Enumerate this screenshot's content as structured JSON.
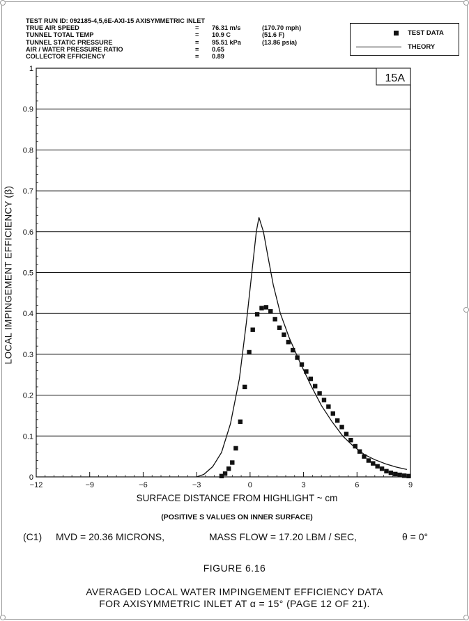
{
  "header": {
    "rows": [
      {
        "label": "TEST RUN ID:  092185-4,5,6E-AXI-15  AXISYMMETRIC INLET",
        "eq": "",
        "value": "",
        "alt": ""
      },
      {
        "label": "TRUE AIR SPEED",
        "eq": "=",
        "value": "76.31 m/s",
        "alt": "(170.70 mph)"
      },
      {
        "label": "TUNNEL TOTAL TEMP",
        "eq": "=",
        "value": "10.9  C",
        "alt": "(51.6  F)"
      },
      {
        "label": "TUNNEL STATIC PRESSURE",
        "eq": "=",
        "value": "95.51 kPa",
        "alt": "(13.86  psia)"
      },
      {
        "label": "AIR / WATER PRESSURE RATIO",
        "eq": "=",
        "value": "0.65",
        "alt": ""
      },
      {
        "label": "COLLECTOR EFFICIENCY",
        "eq": "=",
        "value": "0.89",
        "alt": ""
      }
    ]
  },
  "legend": {
    "test_data": "TEST DATA",
    "theory": "THEORY"
  },
  "panel_id": "15A",
  "conditions": {
    "case": "(C1)",
    "mvd": "MVD  =  20.36 MICRONS,",
    "mass_flow": "MASS FLOW  =  17.20  LBM / SEC,",
    "theta": "θ  =  0°"
  },
  "figure_number": "FIGURE 6.16",
  "caption": {
    "line1": "AVERAGED LOCAL WATER IMPINGEMENT EFFICIENCY DATA",
    "line2": "FOR AXISYMMETRIC INLET AT α = 15° (PAGE 12 OF 21)."
  },
  "chart_data": {
    "type": "scatter",
    "title": "",
    "xlabel": "SURFACE DISTANCE FROM HIGHLIGHT ~ cm",
    "xlabel_note": "(POSITIVE S VALUES ON INNER SURFACE)",
    "ylabel": "LOCAL IMPINGEMENT EFFICIENCY (β)",
    "xlim": [
      -12,
      9
    ],
    "ylim": [
      0,
      1
    ],
    "xticks": [
      -12,
      -9,
      -6,
      -3,
      0,
      3,
      6,
      9
    ],
    "xtick_labels": [
      "−12",
      "−9",
      "−6",
      "−3",
      "0",
      "3",
      "6",
      "9"
    ],
    "yticks": [
      0,
      0.1,
      0.2,
      0.3,
      0.4,
      0.5,
      0.6,
      0.7,
      0.8,
      0.9,
      1
    ],
    "ytick_labels": [
      "0",
      "0.1",
      "0.2",
      "0.3",
      "0.4",
      "0.5",
      "0.6",
      "0.7",
      "0.8",
      "0.9",
      "1"
    ],
    "grid": "horizontal",
    "legend_position": "top-right, outside plot",
    "series": [
      {
        "name": "TEST DATA",
        "type": "scatter",
        "marker": "filled-square",
        "points": [
          [
            -1.6,
            0.002
          ],
          [
            -1.4,
            0.008
          ],
          [
            -1.2,
            0.02
          ],
          [
            -1.0,
            0.035
          ],
          [
            -0.8,
            0.07
          ],
          [
            -0.55,
            0.135
          ],
          [
            -0.3,
            0.22
          ],
          [
            -0.05,
            0.305
          ],
          [
            0.15,
            0.36
          ],
          [
            0.4,
            0.398
          ],
          [
            0.65,
            0.413
          ],
          [
            0.9,
            0.415
          ],
          [
            1.15,
            0.405
          ],
          [
            1.4,
            0.386
          ],
          [
            1.65,
            0.365
          ],
          [
            1.9,
            0.348
          ],
          [
            2.15,
            0.33
          ],
          [
            2.4,
            0.31
          ],
          [
            2.65,
            0.292
          ],
          [
            2.9,
            0.275
          ],
          [
            3.15,
            0.258
          ],
          [
            3.4,
            0.24
          ],
          [
            3.65,
            0.222
          ],
          [
            3.9,
            0.204
          ],
          [
            4.15,
            0.188
          ],
          [
            4.4,
            0.172
          ],
          [
            4.65,
            0.155
          ],
          [
            4.9,
            0.138
          ],
          [
            5.15,
            0.122
          ],
          [
            5.4,
            0.105
          ],
          [
            5.65,
            0.09
          ],
          [
            5.9,
            0.075
          ],
          [
            6.15,
            0.062
          ],
          [
            6.4,
            0.05
          ],
          [
            6.65,
            0.04
          ],
          [
            6.9,
            0.033
          ],
          [
            7.15,
            0.026
          ],
          [
            7.4,
            0.02
          ],
          [
            7.65,
            0.014
          ],
          [
            7.9,
            0.01
          ],
          [
            8.15,
            0.007
          ],
          [
            8.4,
            0.005
          ],
          [
            8.65,
            0.003
          ],
          [
            8.9,
            0.002
          ]
        ]
      },
      {
        "name": "THEORY",
        "type": "line",
        "points": [
          [
            -3.0,
            0.0
          ],
          [
            -2.6,
            0.006
          ],
          [
            -2.1,
            0.025
          ],
          [
            -1.6,
            0.06
          ],
          [
            -1.1,
            0.13
          ],
          [
            -0.6,
            0.24
          ],
          [
            -0.2,
            0.38
          ],
          [
            0.1,
            0.5
          ],
          [
            0.35,
            0.6
          ],
          [
            0.5,
            0.635
          ],
          [
            0.75,
            0.6
          ],
          [
            1.0,
            0.54
          ],
          [
            1.3,
            0.47
          ],
          [
            1.7,
            0.4
          ],
          [
            2.2,
            0.34
          ],
          [
            2.8,
            0.28
          ],
          [
            3.4,
            0.225
          ],
          [
            4.0,
            0.175
          ],
          [
            4.6,
            0.135
          ],
          [
            5.2,
            0.1
          ],
          [
            5.8,
            0.075
          ],
          [
            6.4,
            0.055
          ],
          [
            7.0,
            0.042
          ],
          [
            7.6,
            0.032
          ],
          [
            8.2,
            0.024
          ],
          [
            8.8,
            0.018
          ]
        ]
      }
    ]
  }
}
